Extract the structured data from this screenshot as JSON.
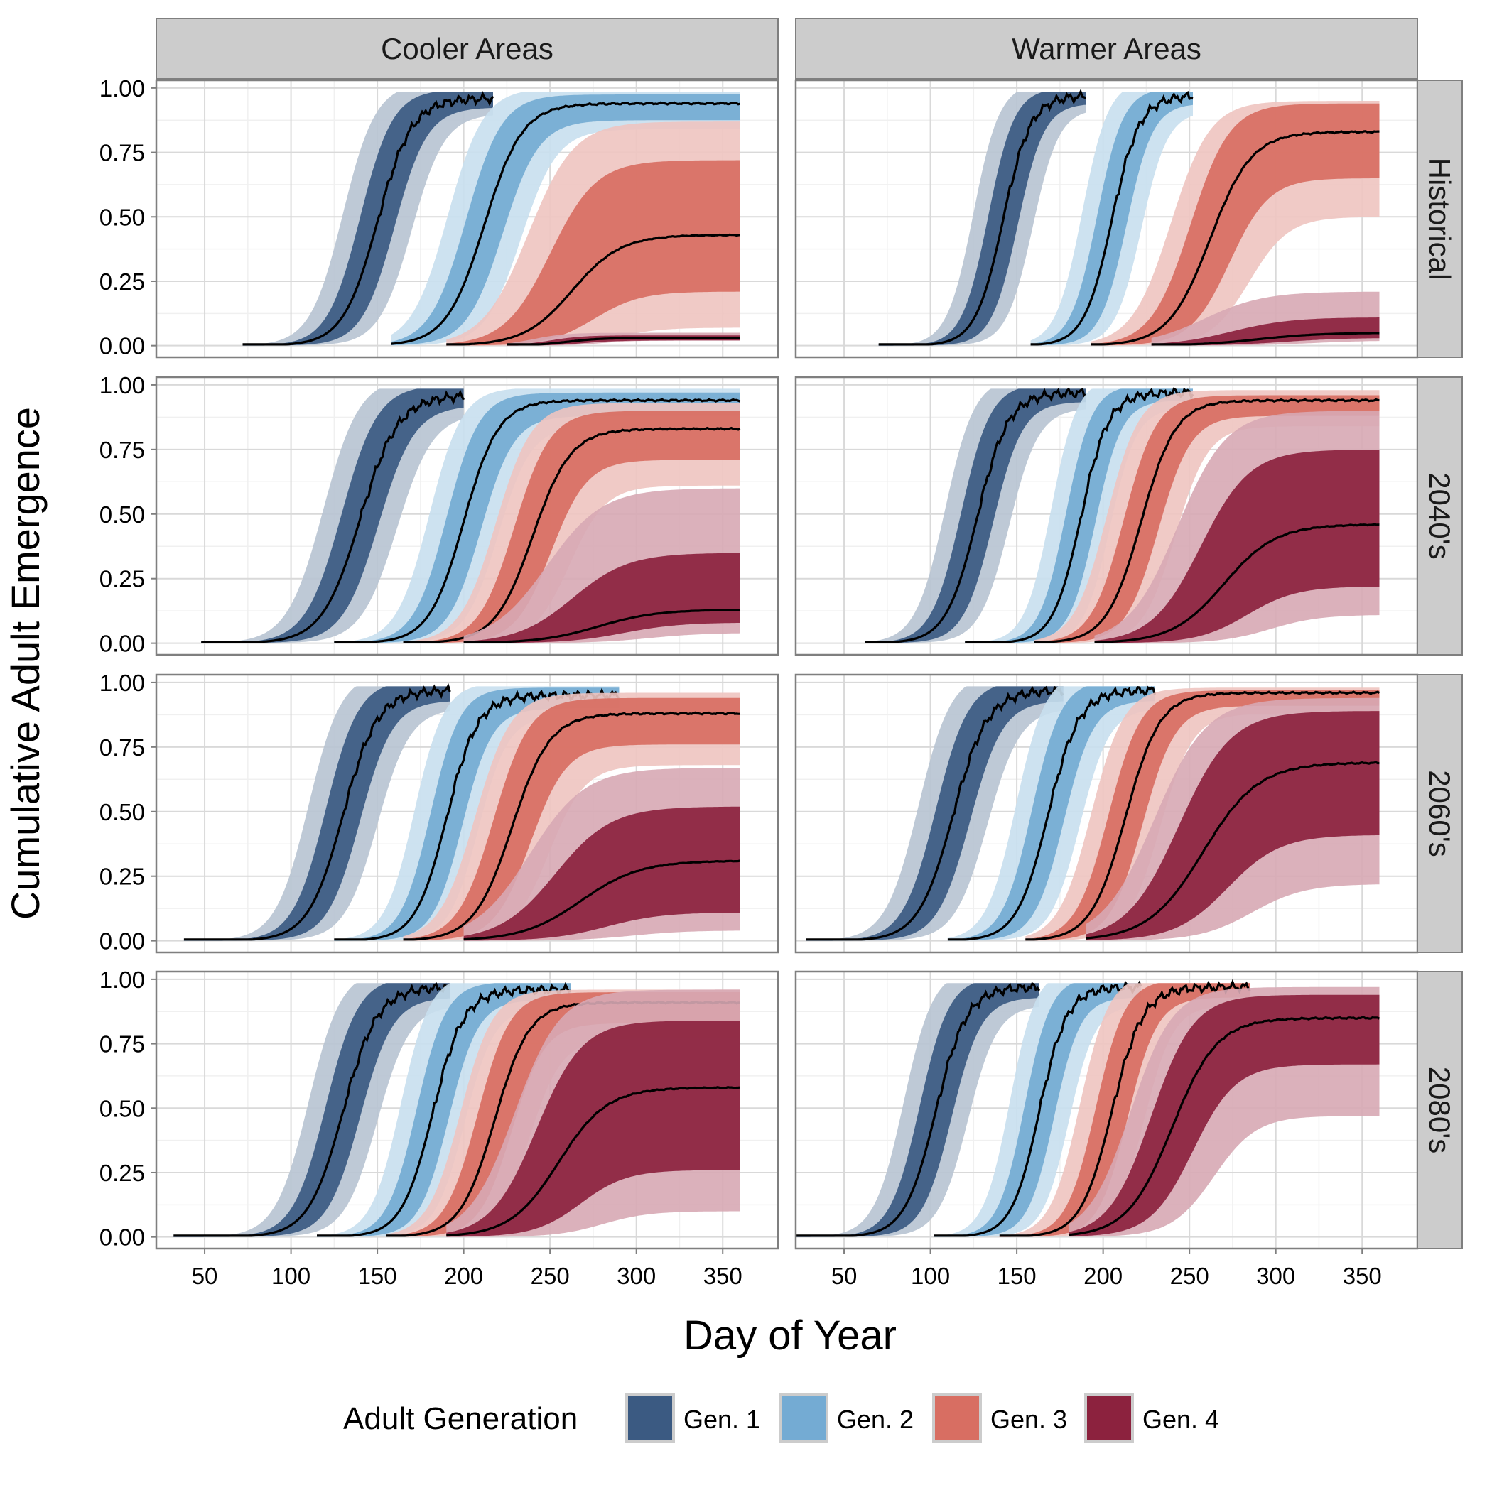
{
  "chart_data": {
    "type": "area",
    "xlabel": "Day of Year",
    "ylabel": "Cumulative Adult Emergence",
    "xlim": [
      22,
      382
    ],
    "ylim": [
      -0.045,
      1.03
    ],
    "xticks": [
      "50",
      "100",
      "150",
      "200",
      "250",
      "300",
      "350"
    ],
    "xtick_values": [
      50,
      100,
      150,
      200,
      250,
      300,
      350
    ],
    "yticks": [
      "0.00",
      "0.25",
      "0.50",
      "0.75",
      "1.00"
    ],
    "ytick_values": [
      0,
      0.25,
      0.5,
      0.75,
      1
    ],
    "grid": true,
    "columns": [
      "Cooler Areas",
      "Warmer Areas"
    ],
    "rows": [
      "Historical",
      "2040's",
      "2060's",
      "2080's"
    ],
    "legend": {
      "title": "Adult Generation",
      "position": "bottom",
      "entries": [
        "Gen. 1",
        "Gen. 2",
        "Gen. 3",
        "Gen. 4"
      ]
    },
    "colors": {
      "gen1": "#3b5a82",
      "gen2": "#74abd3",
      "gen3": "#d86e62",
      "gen4": "#8c223e",
      "gen1_outer": "#b7c3d2",
      "gen2_outer": "#c8dfee",
      "gen3_outer": "#eec4c0",
      "gen4_outer": "#d7a9b4",
      "median": "#000000",
      "strip": "#cccccc"
    },
    "panels": [
      [
        {
          "gen": 1,
          "start": 72,
          "end": 217,
          "mid": 150,
          "w": 10,
          "max": 0.96,
          "o_lo": 0.06,
          "o_hi": 0.06,
          "i_lo": 0.035,
          "i_hi": 0.035
        },
        {
          "gen": 2,
          "start": 158,
          "end": 360,
          "mid": 212,
          "w": 11,
          "max": 0.94,
          "o_lo": 0.1,
          "o_hi": 0.06,
          "i_lo": 0.065,
          "i_hi": 0.035
        },
        {
          "gen": 3,
          "start": 190,
          "end": 360,
          "mid": 263,
          "w": 14,
          "max": 0.43,
          "o_lo": 0.36,
          "o_hi": 0.44,
          "i_lo": 0.22,
          "i_hi": 0.29
        },
        {
          "gen": 4,
          "start": 225,
          "end": 360,
          "mid": 260,
          "w": 10,
          "max": 0.03,
          "o_lo": 0.01,
          "o_hi": 0.02,
          "i_lo": 0.01,
          "i_hi": 0.01
        }
      ],
      [
        {
          "gen": 1,
          "start": 70,
          "end": 190,
          "mid": 142,
          "w": 8,
          "max": 0.97,
          "o_lo": 0.05,
          "o_hi": 0.05,
          "i_lo": 0.03,
          "i_hi": 0.03
        },
        {
          "gen": 2,
          "start": 158,
          "end": 252,
          "mid": 205,
          "w": 8,
          "max": 0.97,
          "o_lo": 0.06,
          "o_hi": 0.06,
          "i_lo": 0.03,
          "i_hi": 0.03
        },
        {
          "gen": 3,
          "start": 193,
          "end": 360,
          "mid": 262,
          "w": 12,
          "max": 0.83,
          "o_lo": 0.33,
          "o_hi": 0.12,
          "i_lo": 0.18,
          "i_hi": 0.11
        },
        {
          "gen": 4,
          "start": 228,
          "end": 360,
          "mid": 290,
          "w": 18,
          "max": 0.05,
          "o_lo": 0.03,
          "o_hi": 0.16,
          "i_lo": 0.02,
          "i_hi": 0.06
        }
      ],
      [
        {
          "gen": 1,
          "start": 48,
          "end": 200,
          "mid": 140,
          "w": 11,
          "max": 0.96,
          "o_lo": 0.07,
          "o_hi": 0.07,
          "i_lo": 0.04,
          "i_hi": 0.04
        },
        {
          "gen": 2,
          "start": 125,
          "end": 360,
          "mid": 200,
          "w": 10,
          "max": 0.94,
          "o_lo": 0.1,
          "o_hi": 0.05,
          "i_lo": 0.06,
          "i_hi": 0.03
        },
        {
          "gen": 3,
          "start": 165,
          "end": 360,
          "mid": 240,
          "w": 11,
          "max": 0.83,
          "o_lo": 0.22,
          "o_hi": 0.1,
          "i_lo": 0.12,
          "i_hi": 0.07
        },
        {
          "gen": 4,
          "start": 200,
          "end": 360,
          "mid": 278,
          "w": 17,
          "max": 0.13,
          "o_lo": 0.09,
          "o_hi": 0.47,
          "i_lo": 0.05,
          "i_hi": 0.22
        }
      ],
      [
        {
          "gen": 1,
          "start": 62,
          "end": 190,
          "mid": 127,
          "w": 9,
          "max": 0.97,
          "o_lo": 0.06,
          "o_hi": 0.06,
          "i_lo": 0.035,
          "i_hi": 0.035
        },
        {
          "gen": 2,
          "start": 120,
          "end": 252,
          "mid": 187,
          "w": 8,
          "max": 0.97,
          "o_lo": 0.06,
          "o_hi": 0.06,
          "i_lo": 0.03,
          "i_hi": 0.03
        },
        {
          "gen": 3,
          "start": 160,
          "end": 360,
          "mid": 222,
          "w": 10,
          "max": 0.94,
          "o_lo": 0.1,
          "o_hi": 0.04,
          "i_lo": 0.06,
          "i_hi": 0.02
        },
        {
          "gen": 4,
          "start": 195,
          "end": 360,
          "mid": 270,
          "w": 15,
          "max": 0.46,
          "o_lo": 0.35,
          "o_hi": 0.44,
          "i_lo": 0.24,
          "i_hi": 0.29
        }
      ],
      [
        {
          "gen": 1,
          "start": 38,
          "end": 192,
          "mid": 130,
          "w": 10,
          "max": 0.97,
          "o_lo": 0.07,
          "o_hi": 0.07,
          "i_lo": 0.04,
          "i_hi": 0.04
        },
        {
          "gen": 2,
          "start": 125,
          "end": 290,
          "mid": 190,
          "w": 9,
          "max": 0.95,
          "o_lo": 0.08,
          "o_hi": 0.05,
          "i_lo": 0.05,
          "i_hi": 0.03
        },
        {
          "gen": 3,
          "start": 165,
          "end": 360,
          "mid": 228,
          "w": 11,
          "max": 0.88,
          "o_lo": 0.2,
          "o_hi": 0.08,
          "i_lo": 0.12,
          "i_hi": 0.06
        },
        {
          "gen": 4,
          "start": 200,
          "end": 360,
          "mid": 268,
          "w": 17,
          "max": 0.31,
          "o_lo": 0.27,
          "o_hi": 0.36,
          "i_lo": 0.2,
          "i_hi": 0.21
        }
      ],
      [
        {
          "gen": 1,
          "start": 28,
          "end": 177,
          "mid": 113,
          "w": 10,
          "max": 0.97,
          "o_lo": 0.07,
          "o_hi": 0.07,
          "i_lo": 0.04,
          "i_hi": 0.04
        },
        {
          "gen": 2,
          "start": 110,
          "end": 230,
          "mid": 168,
          "w": 9,
          "max": 0.97,
          "o_lo": 0.07,
          "o_hi": 0.07,
          "i_lo": 0.04,
          "i_hi": 0.04
        },
        {
          "gen": 3,
          "start": 155,
          "end": 360,
          "mid": 213,
          "w": 10,
          "max": 0.96,
          "o_lo": 0.08,
          "o_hi": 0.02,
          "i_lo": 0.05,
          "i_hi": 0.01
        },
        {
          "gen": 4,
          "start": 190,
          "end": 360,
          "mid": 258,
          "w": 16,
          "max": 0.69,
          "o_lo": 0.47,
          "o_hi": 0.25,
          "i_lo": 0.28,
          "i_hi": 0.2
        }
      ],
      [
        {
          "gen": 1,
          "start": 32,
          "end": 192,
          "mid": 130,
          "w": 10,
          "max": 0.97,
          "o_lo": 0.07,
          "o_hi": 0.07,
          "i_lo": 0.04,
          "i_hi": 0.04
        },
        {
          "gen": 2,
          "start": 115,
          "end": 262,
          "mid": 182,
          "w": 9,
          "max": 0.96,
          "o_lo": 0.07,
          "o_hi": 0.06,
          "i_lo": 0.04,
          "i_hi": 0.03
        },
        {
          "gen": 3,
          "start": 155,
          "end": 360,
          "mid": 218,
          "w": 10,
          "max": 0.91,
          "o_lo": 0.14,
          "o_hi": 0.05,
          "i_lo": 0.08,
          "i_hi": 0.04
        },
        {
          "gen": 4,
          "start": 190,
          "end": 360,
          "mid": 255,
          "w": 14,
          "max": 0.58,
          "o_lo": 0.48,
          "o_hi": 0.38,
          "i_lo": 0.32,
          "i_hi": 0.26
        }
      ],
      [
        {
          "gen": 1,
          "start": 22,
          "end": 163,
          "mid": 103,
          "w": 9,
          "max": 0.97,
          "o_lo": 0.07,
          "o_hi": 0.07,
          "i_lo": 0.04,
          "i_hi": 0.04
        },
        {
          "gen": 2,
          "start": 102,
          "end": 222,
          "mid": 163,
          "w": 8,
          "max": 0.97,
          "o_lo": 0.07,
          "o_hi": 0.07,
          "i_lo": 0.04,
          "i_hi": 0.04
        },
        {
          "gen": 3,
          "start": 140,
          "end": 285,
          "mid": 205,
          "w": 9,
          "max": 0.97,
          "o_lo": 0.07,
          "o_hi": 0.05,
          "i_lo": 0.04,
          "i_hi": 0.03
        },
        {
          "gen": 4,
          "start": 180,
          "end": 360,
          "mid": 240,
          "w": 13,
          "max": 0.85,
          "o_lo": 0.38,
          "o_hi": 0.12,
          "i_lo": 0.18,
          "i_hi": 0.09
        }
      ]
    ]
  }
}
